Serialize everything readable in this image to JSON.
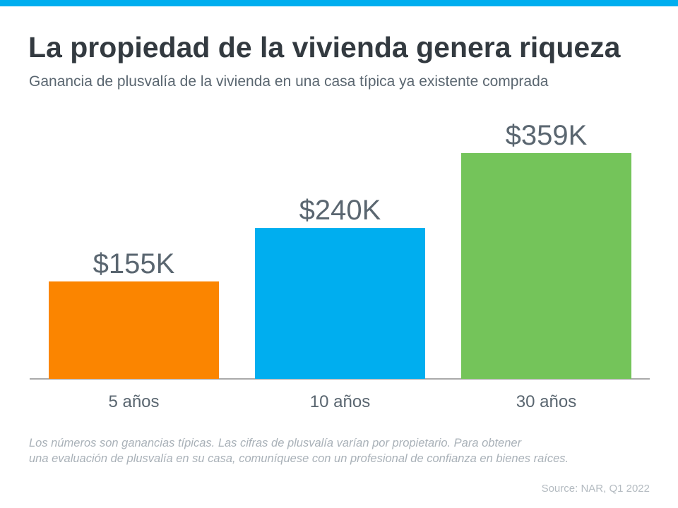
{
  "colors": {
    "accent": "#00aeef",
    "title": "#333a40",
    "text": "#5a6670"
  },
  "chart_data": {
    "type": "bar",
    "title": "La propiedad de la vivienda genera riqueza",
    "subtitle": "Ganancia de plusvalía de la vivienda en una casa típica ya existente comprada",
    "categories": [
      "5 años",
      "10 años",
      "30 años"
    ],
    "values": [
      155,
      240,
      359
    ],
    "data_labels": [
      "$155K",
      "$240K",
      "$359K"
    ],
    "colors": [
      "#fb8500",
      "#00aeef",
      "#74c45a"
    ],
    "xlabel": "",
    "ylabel": "",
    "ylim": [
      0,
      400
    ],
    "grid": false
  },
  "footnote": {
    "line1": "Los números son ganancias típicas. Las cifras de plusvalía varían por propietario. Para obtener",
    "line2": "una evaluación de plusvalía en su casa, comuníquese con un profesional de confianza en bienes raíces."
  },
  "source": "Source: NAR, Q1 2022"
}
